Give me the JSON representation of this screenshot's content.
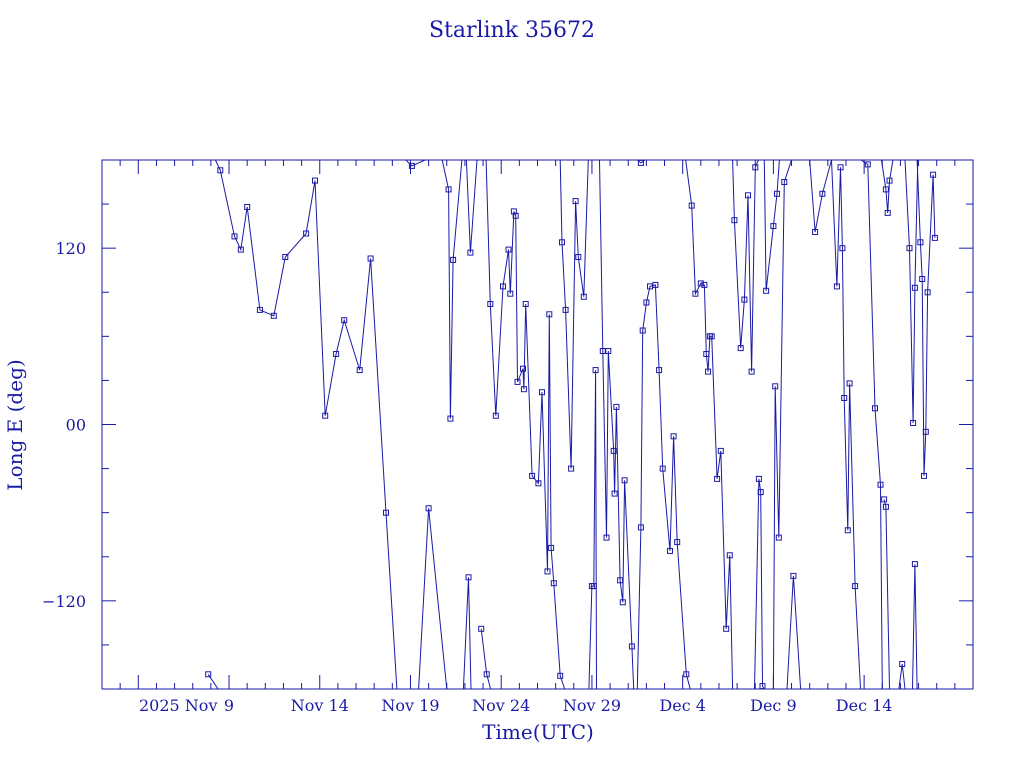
{
  "chart_data": {
    "type": "line",
    "title": "Starlink 35672",
    "xlabel": "Time(UTC)",
    "ylabel": "Long E (deg)",
    "x_unit": "date",
    "xlim": [
      "2025-11-02",
      "2025-12-20"
    ],
    "ylim": [
      -180,
      180
    ],
    "y_ticks": [
      -120,
      0,
      120
    ],
    "y_tick_labels": [
      "−120",
      "00",
      "120"
    ],
    "x_ticks": [
      "2025-11-04",
      "2025-11-09",
      "2025-11-14",
      "2025-11-19",
      "2025-11-24",
      "2025-11-29",
      "2025-12-04",
      "2025-12-09",
      "2025-12-14"
    ],
    "x_tick_labels": [
      "2025 Nov",
      "9",
      "Nov 14",
      "Nov 19",
      "Nov 24",
      "Nov 29",
      "Dec  4",
      "Dec  9",
      "Dec 14"
    ],
    "grid": false,
    "legend": "none",
    "color": "#1a1aa6",
    "marker": "square",
    "series": [
      {
        "segments": [
          [
            [
              "2025-11-07 20:24",
              -170
            ],
            [
              "2025-11-08 09:36",
              -180
            ]
          ],
          [
            [
              "2025-11-08 06:00",
              180
            ],
            [
              "2025-11-08 12:24",
              173
            ],
            [
              "2025-11-09 07:12",
              128
            ],
            [
              "2025-11-09 15:36",
              119
            ],
            [
              "2025-11-10 00:00",
              148
            ],
            [
              "2025-11-10 16:48",
              78
            ],
            [
              "2025-11-11 11:16",
              74
            ],
            [
              "2025-11-12 02:24",
              114
            ],
            [
              "2025-11-13 06:00",
              130
            ],
            [
              "2025-11-13 17:45",
              166
            ],
            [
              "2025-11-14 07:12",
              6
            ],
            [
              "2025-11-14 21:36",
              48
            ],
            [
              "2025-11-15 08:24",
              71
            ],
            [
              "2025-11-16 04:48",
              37
            ],
            [
              "2025-11-16 19:12",
              113
            ],
            [
              "2025-11-17 15:36",
              -60
            ],
            [
              "2025-11-18 06:00",
              -180
            ]
          ],
          [
            [
              "2025-11-18 18:00",
              180
            ],
            [
              "2025-11-19 01:55",
              176
            ],
            [
              "2025-11-19 19:12",
              180
            ]
          ],
          [
            [
              "2025-11-19 10:48",
              -180
            ],
            [
              "2025-11-20 00:00",
              -57
            ],
            [
              "2025-11-21 00:00",
              -180
            ]
          ],
          [
            [
              "2025-11-20 18:00",
              180
            ],
            [
              "2025-11-21 02:24",
              160
            ],
            [
              "2025-11-21 04:48",
              4
            ],
            [
              "2025-11-21 08:24",
              112
            ],
            [
              "2025-11-21 20:00",
              180
            ]
          ],
          [
            [
              "2025-11-21 22:00",
              -180
            ],
            [
              "2025-11-22 04:48",
              -104
            ],
            [
              "2025-11-22 08:00",
              -180
            ]
          ],
          [
            [
              "2025-11-22 02:00",
              180
            ],
            [
              "2025-11-22 07:12",
              117
            ],
            [
              "2025-11-22 16:00",
              180
            ]
          ],
          [
            [
              "2025-11-22 21:36",
              -139
            ],
            [
              "2025-11-23 04:48",
              -170
            ],
            [
              "2025-11-23 10:00",
              -180
            ]
          ],
          [
            [
              "2025-11-23 04:00",
              180
            ],
            [
              "2025-11-23 09:36",
              82
            ],
            [
              "2025-11-23 16:48",
              6
            ],
            [
              "2025-11-24 02:24",
              94
            ],
            [
              "2025-11-24 09:36",
              119
            ],
            [
              "2025-11-24 12:00",
              89
            ],
            [
              "2025-11-24 16:48",
              145
            ],
            [
              "2025-11-24 19:12",
              142
            ],
            [
              "2025-11-24 21:36",
              29
            ],
            [
              "2025-11-25 04:48",
              38
            ],
            [
              "2025-11-25 06:00",
              24
            ],
            [
              "2025-11-25 08:24",
              82
            ],
            [
              "2025-11-25 16:48",
              -35
            ],
            [
              "2025-11-26 01:12",
              -40
            ],
            [
              "2025-11-26 06:00",
              22
            ],
            [
              "2025-11-26 13:12",
              -100
            ],
            [
              "2025-11-26 15:36",
              75
            ],
            [
              "2025-11-26 18:00",
              -84
            ],
            [
              "2025-11-26 21:36",
              -108
            ],
            [
              "2025-11-27 06:00",
              -171
            ],
            [
              "2025-11-27 12:00",
              -180
            ]
          ],
          [
            [
              "2025-11-27 06:00",
              180
            ],
            [
              "2025-11-27 08:24",
              124
            ],
            [
              "2025-11-27 13:12",
              78
            ],
            [
              "2025-11-27 20:24",
              -30
            ],
            [
              "2025-11-28 02:24",
              152
            ],
            [
              "2025-11-28 06:00",
              114
            ],
            [
              "2025-11-28 13:12",
              87
            ],
            [
              "2025-11-28 19:12",
              180
            ]
          ],
          [
            [
              "2025-11-28 20:00",
              -180
            ],
            [
              "2025-11-29 00:00",
              -110
            ],
            [
              "2025-11-29 02:24",
              -110
            ],
            [
              "2025-11-29 04:48",
              37
            ],
            [
              "2025-11-29 06:00",
              -180
            ]
          ],
          [
            [
              "2025-11-29 10:00",
              180
            ],
            [
              "2025-11-29 14:24",
              50
            ],
            [
              "2025-11-29 19:12",
              -77
            ],
            [
              "2025-11-29 21:36",
              50
            ],
            [
              "2025-11-30 04:48",
              -18
            ],
            [
              "2025-11-30 06:00",
              -47
            ],
            [
              "2025-11-30 08:24",
              12
            ],
            [
              "2025-11-30 13:12",
              -106
            ],
            [
              "2025-11-30 16:48",
              -121
            ],
            [
              "2025-11-30 19:12",
              -38
            ],
            [
              "2025-12-01 04:48",
              -151
            ],
            [
              "2025-12-01 07:12",
              -180
            ]
          ],
          [
            [
              "2025-12-01 12:00",
              180
            ],
            [
              "2025-12-01 16:48",
              178
            ],
            [
              "2025-12-01 22:00",
              180
            ]
          ],
          [
            [
              "2025-12-01 12:00",
              -180
            ],
            [
              "2025-12-01 16:48",
              -70
            ],
            [
              "2025-12-01 19:12",
              64
            ],
            [
              "2025-12-02 00:00",
              83
            ],
            [
              "2025-12-02 04:48",
              94
            ],
            [
              "2025-12-02 12:00",
              95
            ],
            [
              "2025-12-02 16:48",
              37
            ],
            [
              "2025-12-02 21:36",
              -30
            ],
            [
              "2025-12-03 07:12",
              -86
            ],
            [
              "2025-12-03 12:00",
              -8
            ],
            [
              "2025-12-03 16:48",
              -80
            ],
            [
              "2025-12-04 04:48",
              -170
            ],
            [
              "2025-12-04 10:00",
              -180
            ]
          ],
          [
            [
              "2025-12-04 04:00",
              180
            ],
            [
              "2025-12-04 12:00",
              149
            ],
            [
              "2025-12-04 16:48",
              89
            ],
            [
              "2025-12-05 00:00",
              96
            ],
            [
              "2025-12-05 04:48",
              95
            ],
            [
              "2025-12-05 07:12",
              48
            ],
            [
              "2025-12-05 09:36",
              36
            ],
            [
              "2025-12-05 12:00",
              60
            ],
            [
              "2025-12-05 14:24",
              60
            ],
            [
              "2025-12-05 21:36",
              -37
            ],
            [
              "2025-12-06 02:24",
              -18
            ],
            [
              "2025-12-06 09:36",
              -139
            ],
            [
              "2025-12-06 14:24",
              -89
            ],
            [
              "2025-12-06 18:00",
              -180
            ]
          ],
          [
            [
              "2025-12-06 18:00",
              180
            ],
            [
              "2025-12-06 20:24",
              139
            ],
            [
              "2025-12-07 04:48",
              52
            ],
            [
              "2025-12-07 09:36",
              85
            ],
            [
              "2025-12-07 14:24",
              156
            ],
            [
              "2025-12-07 19:12",
              36
            ],
            [
              "2025-12-08 00:00",
              175
            ],
            [
              "2025-12-08 04:00",
              180
            ]
          ],
          [
            [
              "2025-12-07 23:00",
              -180
            ],
            [
              "2025-12-08 04:48",
              -37
            ],
            [
              "2025-12-08 07:12",
              -46
            ],
            [
              "2025-12-08 09:36",
              -178
            ],
            [
              "2025-12-08 12:00",
              -180
            ]
          ],
          [
            [
              "2025-12-08 12:00",
              180
            ],
            [
              "2025-12-08 14:24",
              91
            ],
            [
              "2025-12-09 00:00",
              135
            ],
            [
              "2025-12-09 04:48",
              157
            ],
            [
              "2025-12-09 08:00",
              180
            ]
          ],
          [
            [
              "2025-12-09 00:00",
              -180
            ],
            [
              "2025-12-09 02:24",
              26
            ],
            [
              "2025-12-09 07:12",
              -77
            ],
            [
              "2025-12-09 14:24",
              165
            ],
            [
              "2025-12-10 00:00",
              180
            ]
          ],
          [
            [
              "2025-12-09 18:00",
              -180
            ],
            [
              "2025-12-10 02:24",
              -103
            ],
            [
              "2025-12-10 12:00",
              -180
            ]
          ],
          [
            [
              "2025-12-11 00:00",
              180
            ],
            [
              "2025-12-11 07:12",
              131
            ],
            [
              "2025-12-11 16:48",
              157
            ],
            [
              "2025-12-12 04:48",
              180
            ]
          ],
          [
            [
              "2025-12-12 04:48",
              180
            ],
            [
              "2025-12-12 12:00",
              94
            ],
            [
              "2025-12-12 16:48",
              175
            ],
            [
              "2025-12-12 19:12",
              120
            ],
            [
              "2025-12-12 21:36",
              18
            ],
            [
              "2025-12-13 02:24",
              -72
            ],
            [
              "2025-12-13 04:48",
              28
            ],
            [
              "2025-12-13 12:00",
              -110
            ],
            [
              "2025-12-13 19:12",
              -180
            ]
          ],
          [
            [
              "2025-12-13 20:00",
              180
            ],
            [
              "2025-12-14 04:48",
              177
            ],
            [
              "2025-12-14 14:24",
              11
            ],
            [
              "2025-12-14 21:36",
              -41
            ],
            [
              "2025-12-15 00:00",
              -180
            ]
          ],
          [
            [
              "2025-12-14 23:00",
              180
            ],
            [
              "2025-12-15 04:48",
              160
            ],
            [
              "2025-12-15 07:12",
              144
            ],
            [
              "2025-12-15 09:36",
              166
            ],
            [
              "2025-12-15 14:00",
              180
            ]
          ],
          [
            [
              "2025-12-15 02:24",
              -51
            ],
            [
              "2025-12-15 04:48",
              -56
            ],
            [
              "2025-12-15 09:36",
              -180
            ]
          ],
          [
            [
              "2025-12-15 22:00",
              -180
            ],
            [
              "2025-12-16 02:24",
              -163
            ],
            [
              "2025-12-16 06:00",
              -180
            ]
          ],
          [
            [
              "2025-12-16 06:00",
              180
            ],
            [
              "2025-12-16 12:00",
              120
            ],
            [
              "2025-12-16 16:48",
              1
            ],
            [
              "2025-12-16 19:12",
              93
            ],
            [
              "2025-12-16 23:00",
              180
            ]
          ],
          [
            [
              "2025-12-16 16:00",
              -180
            ],
            [
              "2025-12-16 19:12",
              -95
            ],
            [
              "2025-12-16 22:00",
              -180
            ]
          ],
          [
            [
              "2025-12-16 22:00",
              180
            ],
            [
              "2025-12-17 02:24",
              124
            ],
            [
              "2025-12-17 04:48",
              99
            ],
            [
              "2025-12-17 07:12",
              -35
            ],
            [
              "2025-12-17 09:36",
              -5
            ],
            [
              "2025-12-17 12:00",
              90
            ],
            [
              "2025-12-17 19:12",
              170
            ],
            [
              "2025-12-17 21:36",
              127
            ]
          ]
        ]
      }
    ]
  }
}
